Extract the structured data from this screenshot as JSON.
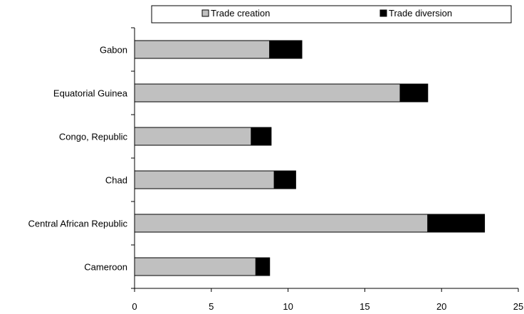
{
  "chart_data": {
    "type": "bar",
    "orientation": "horizontal",
    "stacked": true,
    "categories": [
      "Cameroon",
      "Central African Republic",
      "Chad",
      "Congo, Republic",
      "Equatorial Guinea",
      "Gabon"
    ],
    "series": [
      {
        "name": "Trade creation",
        "values": [
          7.9,
          19.1,
          9.1,
          7.6,
          17.3,
          8.8
        ],
        "color": "#c0c0c0"
      },
      {
        "name": "Trade diversion",
        "values": [
          0.9,
          3.7,
          1.4,
          1.3,
          1.8,
          2.1
        ],
        "color": "#000000"
      }
    ],
    "xlim": [
      0,
      25
    ],
    "xticks": [
      "0",
      "5",
      "10",
      "15",
      "20",
      "25"
    ],
    "grid": false,
    "legend_position": "top"
  }
}
